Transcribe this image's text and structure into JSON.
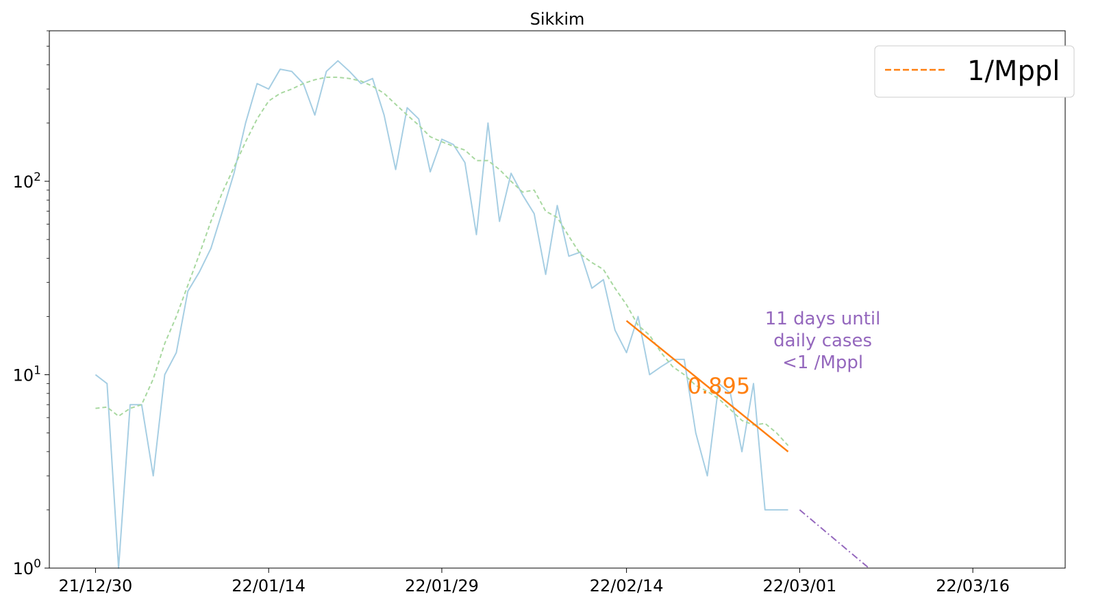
{
  "chart_data": {
    "type": "line",
    "title": "Sikkim",
    "xlabel": "",
    "ylabel": "",
    "yscale": "log",
    "ylim": [
      1,
      600
    ],
    "xlim": [
      "21/12/26",
      "22/03/24"
    ],
    "x_ticks": [
      "21/12/30",
      "22/01/14",
      "22/01/29",
      "22/02/14",
      "22/03/01",
      "22/03/16"
    ],
    "y_ticks": [
      {
        "value": 1,
        "base": "10",
        "exp": "0"
      },
      {
        "value": 10,
        "base": "10",
        "exp": "1"
      },
      {
        "value": 100,
        "base": "10",
        "exp": "2"
      }
    ],
    "grid": false,
    "legend": {
      "position": "top-right",
      "entries": [
        {
          "label": "1/Mppl",
          "color": "#ff7f0e",
          "style": "dashed"
        }
      ]
    },
    "series": [
      {
        "kind": "daily",
        "color": "#a6cee3",
        "style": "solid",
        "x": [
          "21/12/30",
          "21/12/31",
          "22/01/01",
          "22/01/02",
          "22/01/03",
          "22/01/04",
          "22/01/05",
          "22/01/06",
          "22/01/07",
          "22/01/08",
          "22/01/09",
          "22/01/10",
          "22/01/11",
          "22/01/12",
          "22/01/13",
          "22/01/14",
          "22/01/15",
          "22/01/16",
          "22/01/17",
          "22/01/18",
          "22/01/19",
          "22/01/20",
          "22/01/21",
          "22/01/22",
          "22/01/23",
          "22/01/24",
          "22/01/25",
          "22/01/26",
          "22/01/27",
          "22/01/28",
          "22/01/29",
          "22/01/30",
          "22/01/31",
          "22/02/01",
          "22/02/02",
          "22/02/03",
          "22/02/04",
          "22/02/05",
          "22/02/06",
          "22/02/07",
          "22/02/08",
          "22/02/09",
          "22/02/10",
          "22/02/11",
          "22/02/12",
          "22/02/13",
          "22/02/14",
          "22/02/15",
          "22/02/16",
          "22/02/17",
          "22/02/18",
          "22/02/19",
          "22/02/20",
          "22/02/21",
          "22/02/22",
          "22/02/23",
          "22/02/24",
          "22/02/25",
          "22/02/26",
          "22/02/27",
          "22/02/28"
        ],
        "values": [
          10,
          9,
          1,
          7,
          7,
          3,
          10,
          13,
          27,
          34,
          45,
          70,
          110,
          200,
          320,
          300,
          380,
          370,
          320,
          220,
          370,
          420,
          370,
          320,
          340,
          220,
          115,
          240,
          210,
          112,
          165,
          155,
          125,
          53,
          200,
          62,
          110,
          85,
          68,
          33,
          75,
          41,
          43,
          28,
          31,
          17,
          13,
          20,
          10,
          11,
          12,
          12,
          5,
          3,
          9,
          8,
          4,
          9,
          2,
          2,
          2
        ]
      },
      {
        "kind": "7-day average",
        "color": "#a8d8a0",
        "style": "dashed",
        "x": [
          "21/12/30",
          "21/12/31",
          "22/01/01",
          "22/01/02",
          "22/01/03",
          "22/01/04",
          "22/01/05",
          "22/01/06",
          "22/01/07",
          "22/01/08",
          "22/01/09",
          "22/01/10",
          "22/01/11",
          "22/01/12",
          "22/01/13",
          "22/01/14",
          "22/01/15",
          "22/01/16",
          "22/01/17",
          "22/01/18",
          "22/01/19",
          "22/01/20",
          "22/01/21",
          "22/01/22",
          "22/01/23",
          "22/01/24",
          "22/01/25",
          "22/01/26",
          "22/01/27",
          "22/01/28",
          "22/01/29",
          "22/01/30",
          "22/01/31",
          "22/02/01",
          "22/02/02",
          "22/02/03",
          "22/02/04",
          "22/02/05",
          "22/02/06",
          "22/02/07",
          "22/02/08",
          "22/02/09",
          "22/02/10",
          "22/02/11",
          "22/02/12",
          "22/02/13",
          "22/02/14",
          "22/02/15",
          "22/02/16",
          "22/02/17",
          "22/02/18",
          "22/02/19",
          "22/02/20",
          "22/02/21",
          "22/02/22",
          "22/02/23",
          "22/02/24",
          "22/02/25",
          "22/02/26",
          "22/02/27",
          "22/02/28"
        ],
        "values": [
          6.7,
          6.8,
          6.1,
          6.7,
          7.0,
          9.5,
          14.5,
          20,
          29,
          42,
          62,
          88,
          118,
          160,
          210,
          260,
          285,
          300,
          320,
          335,
          345,
          345,
          340,
          330,
          310,
          285,
          250,
          220,
          195,
          170,
          160,
          152,
          145,
          128,
          128,
          115,
          100,
          88,
          90,
          70,
          65,
          52,
          42,
          38,
          35,
          28,
          23,
          18,
          16,
          13,
          11,
          10,
          8.8,
          8.2,
          7.5,
          6.6,
          5.8,
          5.5,
          5.6,
          5.0,
          4.3
        ]
      },
      {
        "kind": "exponential fit",
        "color": "#ff7f0e",
        "style": "solid",
        "x": [
          "22/02/14",
          "22/02/28"
        ],
        "values": [
          19,
          4
        ]
      },
      {
        "kind": "projection",
        "color": "#9467bd",
        "style": "dashdot",
        "x": [
          "22/03/01",
          "22/03/07"
        ],
        "values": [
          2,
          1
        ]
      }
    ],
    "annotations": [
      {
        "text": "0.895",
        "color": "#ff7f0e",
        "at_x": "22/02/22",
        "at_y": 8
      },
      {
        "lines": [
          "11 days until",
          "daily cases",
          "<1 /Mppl"
        ],
        "color": "#9467bd",
        "at_x": "22/03/03",
        "at_y": 14
      }
    ]
  }
}
